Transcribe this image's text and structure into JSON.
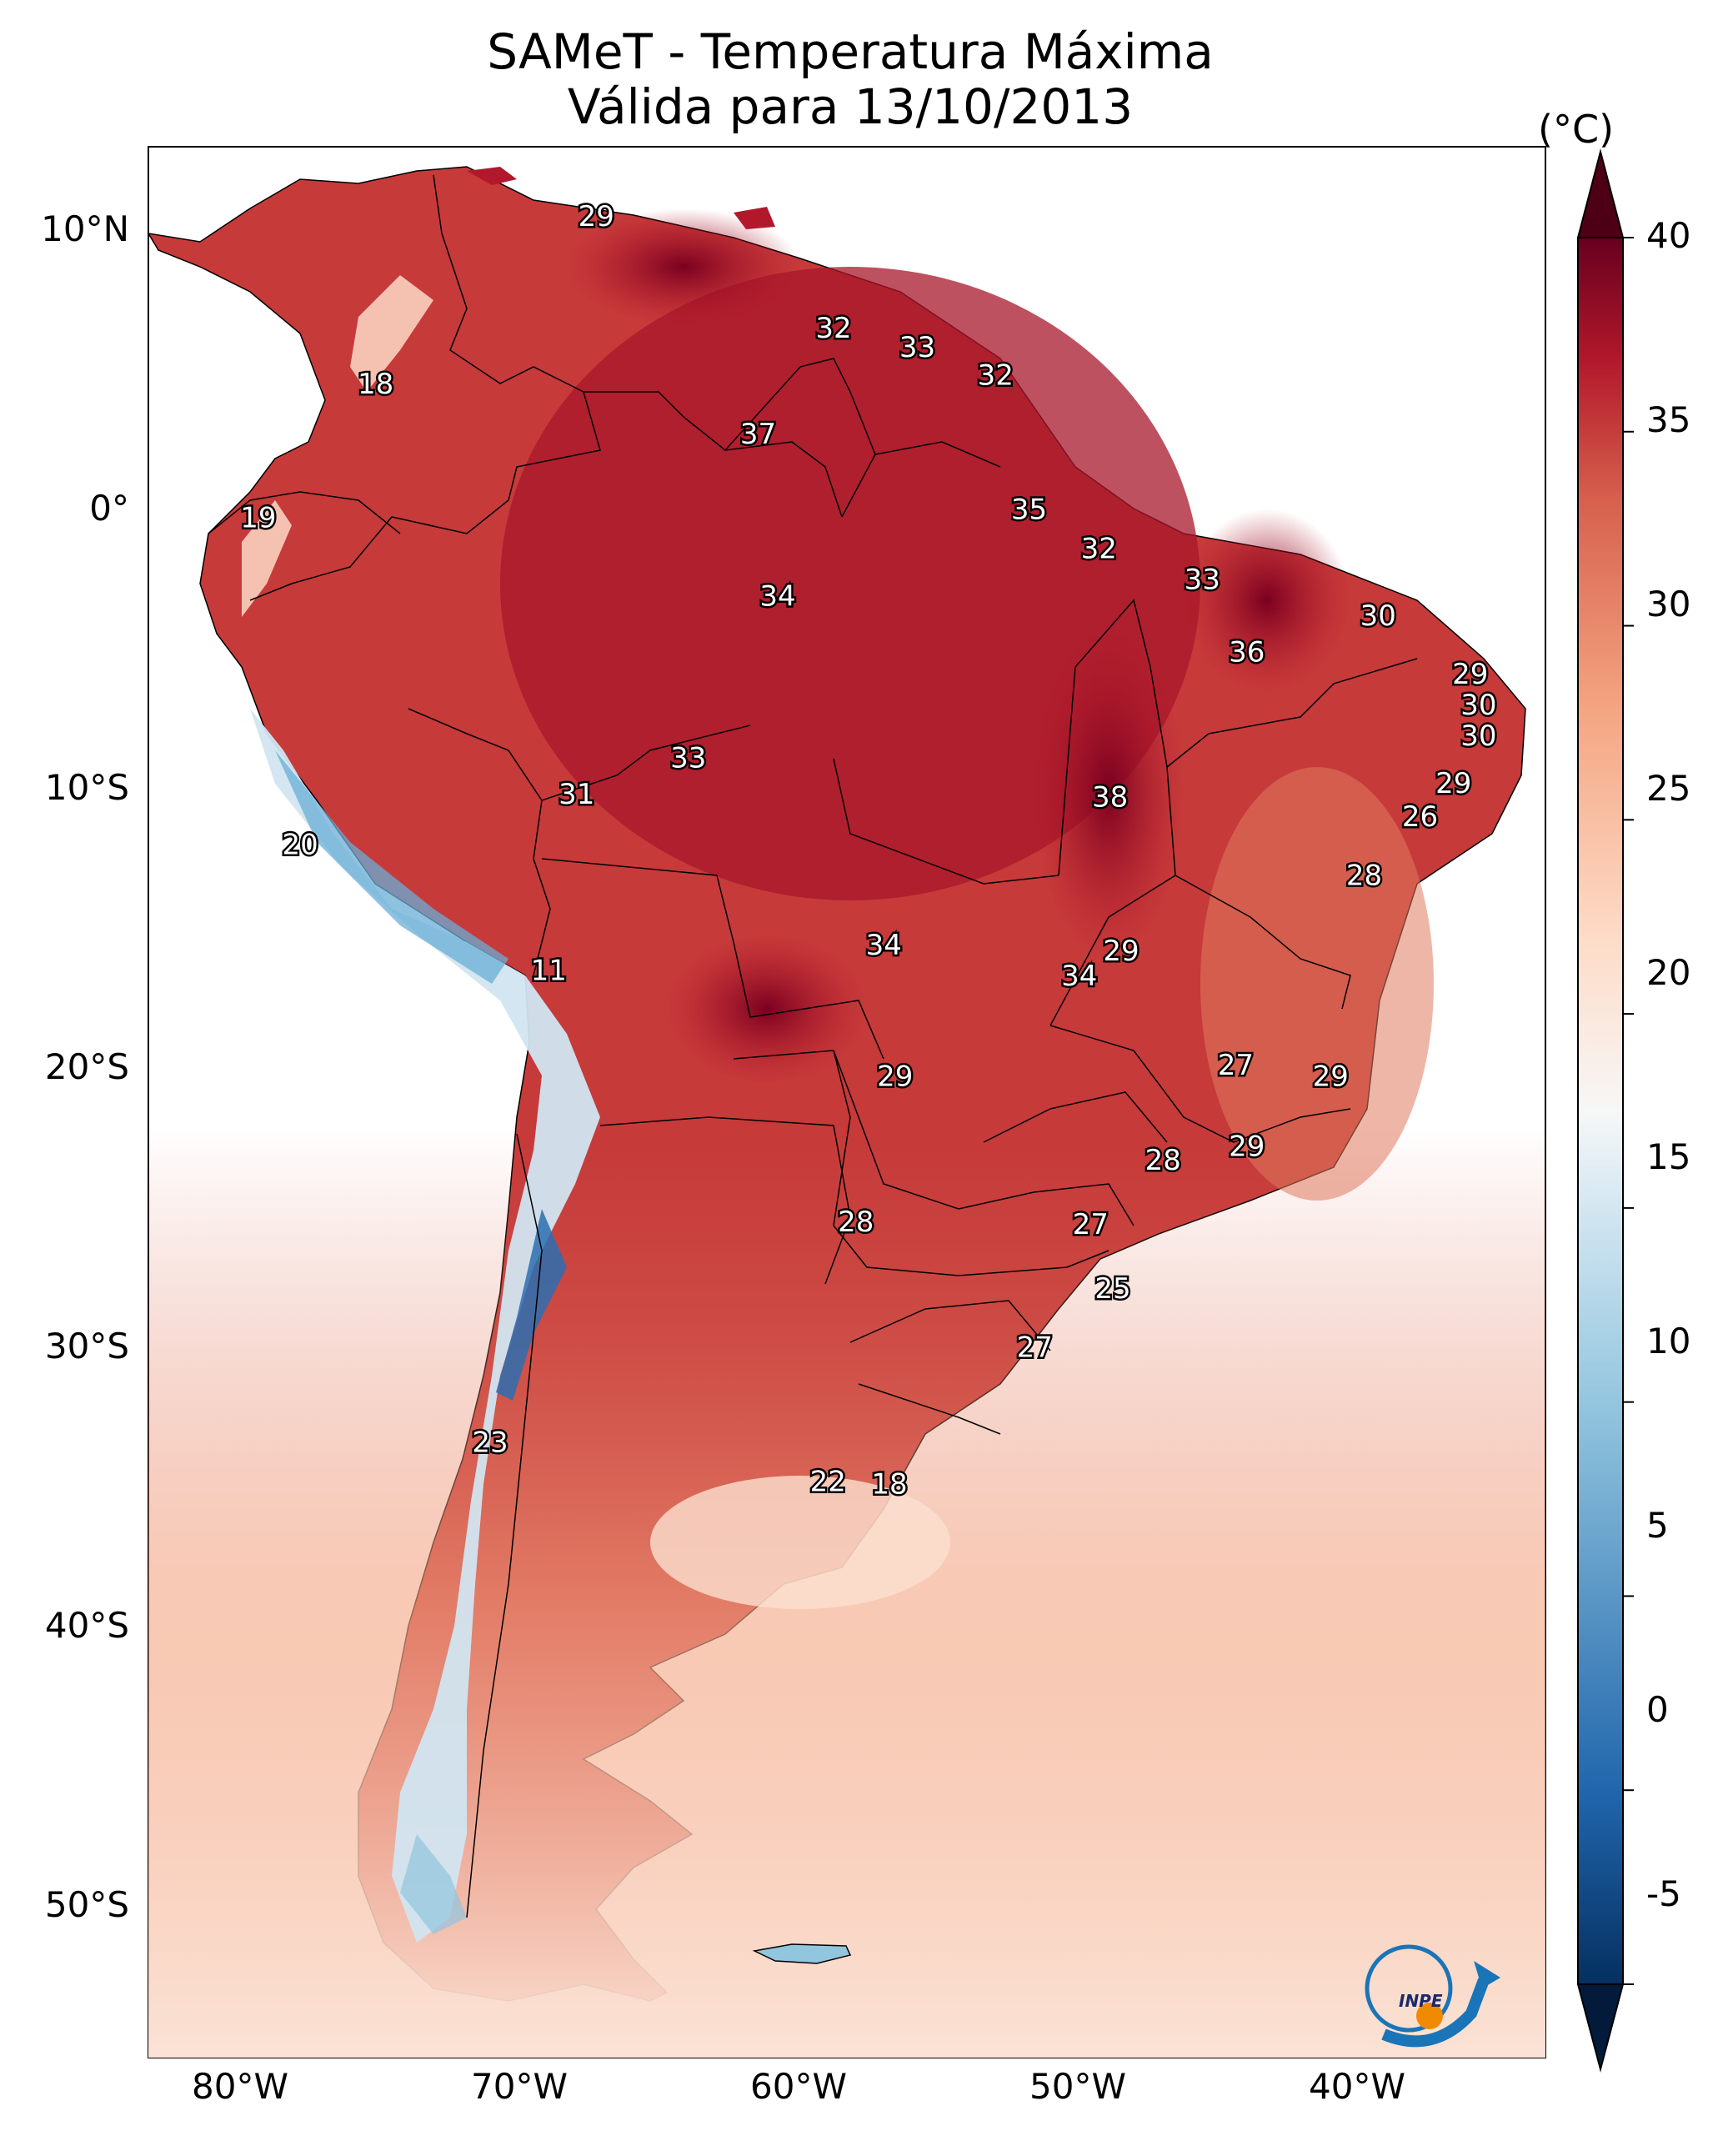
{
  "title": "SAMeT - Temperatura Máxima",
  "subtitle": "Válida para 13/10/2013",
  "unit": "(°C)",
  "lat_ticks": [
    "10°N",
    "0°",
    "10°S",
    "20°S",
    "30°S",
    "40°S",
    "50°S"
  ],
  "lon_ticks": [
    "80°W",
    "70°W",
    "60°W",
    "50°W",
    "40°W"
  ],
  "colorbar_ticks": [
    "40",
    "35",
    "30",
    "25",
    "20",
    "15",
    "10",
    "5",
    "0",
    "-5"
  ],
  "colorbar_range": [
    -5,
    40
  ],
  "logo_text": "INPE",
  "colors": {
    "hot": "#67001f",
    "warm": "#d6604d",
    "mild": "#fddbc7",
    "neutral": "#f7f7f7",
    "cool": "#92c5de",
    "cold": "#053061"
  },
  "labels": [
    {
      "t": "29",
      "lon": -66.5,
      "lat": 10.5
    },
    {
      "t": "32",
      "lon": -58,
      "lat": 6.5
    },
    {
      "t": "33",
      "lon": -55,
      "lat": 5.8
    },
    {
      "t": "32",
      "lon": -52.2,
      "lat": 4.8
    },
    {
      "t": "18",
      "lon": -74.4,
      "lat": 4.5
    },
    {
      "t": "37",
      "lon": -60.7,
      "lat": 2.7
    },
    {
      "t": "35",
      "lon": -51,
      "lat": 0
    },
    {
      "t": "19",
      "lon": -78.6,
      "lat": -0.3
    },
    {
      "t": "32",
      "lon": -48.5,
      "lat": -1.4
    },
    {
      "t": "33",
      "lon": -44.8,
      "lat": -2.5
    },
    {
      "t": "34",
      "lon": -60,
      "lat": -3.1
    },
    {
      "t": "30",
      "lon": -38.5,
      "lat": -3.8
    },
    {
      "t": "36",
      "lon": -43.2,
      "lat": -5.1
    },
    {
      "t": "29",
      "lon": -35.2,
      "lat": -5.9
    },
    {
      "t": "30",
      "lon": -34.9,
      "lat": -7
    },
    {
      "t": "30",
      "lon": -34.9,
      "lat": -8.1
    },
    {
      "t": "33",
      "lon": -63.2,
      "lat": -8.9
    },
    {
      "t": "29",
      "lon": -35.8,
      "lat": -9.8
    },
    {
      "t": "31",
      "lon": -67.2,
      "lat": -10.2
    },
    {
      "t": "38",
      "lon": -48.1,
      "lat": -10.3
    },
    {
      "t": "26",
      "lon": -37,
      "lat": -11
    },
    {
      "t": "20",
      "lon": -77.1,
      "lat": -12
    },
    {
      "t": "28",
      "lon": -39,
      "lat": -13.1
    },
    {
      "t": "34",
      "lon": -56.2,
      "lat": -15.6
    },
    {
      "t": "29",
      "lon": -47.7,
      "lat": -15.8
    },
    {
      "t": "11",
      "lon": -68.2,
      "lat": -16.5
    },
    {
      "t": "34",
      "lon": -49.2,
      "lat": -16.7
    },
    {
      "t": "27",
      "lon": -43.6,
      "lat": -19.9
    },
    {
      "t": "29",
      "lon": -55.8,
      "lat": -20.3
    },
    {
      "t": "29",
      "lon": -40.2,
      "lat": -20.3
    },
    {
      "t": "29",
      "lon": -43.2,
      "lat": -22.8
    },
    {
      "t": "28",
      "lon": -46.2,
      "lat": -23.3
    },
    {
      "t": "28",
      "lon": -57.2,
      "lat": -25.5
    },
    {
      "t": "27",
      "lon": -48.8,
      "lat": -25.6
    },
    {
      "t": "25",
      "lon": -48,
      "lat": -27.9
    },
    {
      "t": "27",
      "lon": -50.8,
      "lat": -30.0
    },
    {
      "t": "23",
      "lon": -70.3,
      "lat": -33.4
    },
    {
      "t": "22",
      "lon": -58.2,
      "lat": -34.8
    },
    {
      "t": "18",
      "lon": -56,
      "lat": -34.9
    }
  ]
}
